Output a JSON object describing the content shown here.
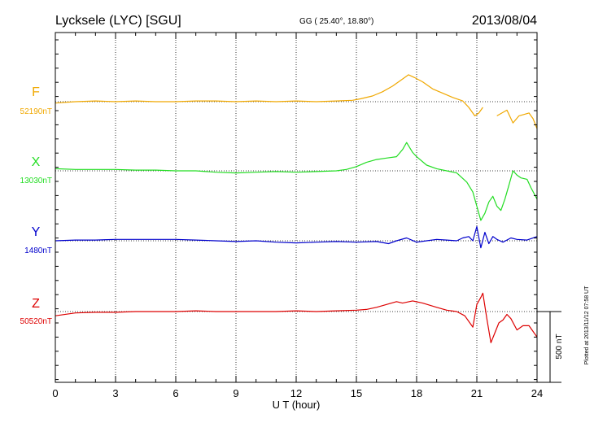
{
  "header": {
    "station": "Lycksele (LYC)  [SGU]",
    "coords": "GG ( 25.40°,  18.80°)",
    "date": "2013/08/04"
  },
  "footer": {
    "plotted": "Plotted at 2013/11/12 07:58 UT",
    "scale": "500 nT"
  },
  "chart_data": {
    "type": "line",
    "xlabel": "U T (hour)",
    "ylabel": "",
    "xlim": [
      0,
      24
    ],
    "xticks": [
      0,
      3,
      6,
      9,
      12,
      15,
      18,
      21,
      24
    ],
    "scale_bar_nT": 500,
    "grid": true,
    "series": [
      {
        "name": "F",
        "baseline_label": "52190nT",
        "baseline_nT": 52190,
        "color": "#f0a800",
        "points": [
          [
            0,
            -10
          ],
          [
            1,
            0
          ],
          [
            2,
            5
          ],
          [
            3,
            0
          ],
          [
            4,
            5
          ],
          [
            5,
            0
          ],
          [
            6,
            0
          ],
          [
            7,
            5
          ],
          [
            8,
            5
          ],
          [
            9,
            0
          ],
          [
            10,
            5
          ],
          [
            11,
            0
          ],
          [
            12,
            5
          ],
          [
            13,
            0
          ],
          [
            14,
            5
          ],
          [
            14.8,
            10
          ],
          [
            15.2,
            20
          ],
          [
            15.8,
            40
          ],
          [
            16.3,
            70
          ],
          [
            16.8,
            110
          ],
          [
            17.2,
            150
          ],
          [
            17.6,
            190
          ],
          [
            17.9,
            170
          ],
          [
            18.3,
            140
          ],
          [
            18.8,
            90
          ],
          [
            19.3,
            60
          ],
          [
            19.8,
            30
          ],
          [
            20.3,
            5
          ],
          [
            20.6,
            -40
          ],
          [
            20.9,
            -100
          ],
          [
            21.1,
            -80
          ],
          [
            21.3,
            -40
          ],
          null,
          [
            22,
            -100
          ],
          [
            22.5,
            -60
          ],
          [
            22.8,
            -150
          ],
          [
            23.1,
            -100
          ],
          [
            23.6,
            -80
          ],
          [
            23.8,
            -120
          ],
          [
            24,
            -190
          ]
        ]
      },
      {
        "name": "X",
        "baseline_label": "13030nT",
        "baseline_nT": 13030,
        "color": "#22dd22",
        "points": [
          [
            0,
            15
          ],
          [
            1,
            10
          ],
          [
            2,
            10
          ],
          [
            3,
            10
          ],
          [
            4,
            5
          ],
          [
            5,
            5
          ],
          [
            6,
            0
          ],
          [
            7,
            0
          ],
          [
            8,
            -10
          ],
          [
            9,
            -15
          ],
          [
            10,
            -10
          ],
          [
            11,
            -5
          ],
          [
            12,
            -10
          ],
          [
            13,
            -5
          ],
          [
            14,
            0
          ],
          [
            14.5,
            10
          ],
          [
            15,
            30
          ],
          [
            15.5,
            60
          ],
          [
            16,
            80
          ],
          [
            16.5,
            90
          ],
          [
            17,
            100
          ],
          [
            17.3,
            150
          ],
          [
            17.5,
            200
          ],
          [
            17.8,
            130
          ],
          [
            18,
            100
          ],
          [
            18.5,
            40
          ],
          [
            19,
            15
          ],
          [
            19.5,
            0
          ],
          [
            20,
            -15
          ],
          [
            20.5,
            -80
          ],
          [
            20.8,
            -150
          ],
          [
            21,
            -250
          ],
          [
            21.2,
            -350
          ],
          [
            21.4,
            -300
          ],
          [
            21.6,
            -220
          ],
          [
            21.8,
            -180
          ],
          [
            22,
            -250
          ],
          [
            22.2,
            -280
          ],
          [
            22.4,
            -200
          ],
          [
            22.6,
            -100
          ],
          [
            22.8,
            0
          ],
          [
            23,
            -30
          ],
          [
            23.2,
            -50
          ],
          [
            23.5,
            -60
          ],
          [
            23.7,
            -120
          ],
          [
            24,
            -200
          ]
        ]
      },
      {
        "name": "Y",
        "baseline_label": "1480nT",
        "baseline_nT": 1480,
        "color": "#0000cc",
        "points": [
          [
            0,
            0
          ],
          [
            1,
            5
          ],
          [
            2,
            5
          ],
          [
            3,
            10
          ],
          [
            4,
            10
          ],
          [
            5,
            10
          ],
          [
            6,
            10
          ],
          [
            7,
            5
          ],
          [
            8,
            0
          ],
          [
            9,
            -5
          ],
          [
            10,
            0
          ],
          [
            11,
            -10
          ],
          [
            12,
            -15
          ],
          [
            13,
            -10
          ],
          [
            14,
            -5
          ],
          [
            15,
            -10
          ],
          [
            16,
            -5
          ],
          [
            16.6,
            -20
          ],
          [
            17,
            0
          ],
          [
            17.5,
            20
          ],
          [
            18,
            -10
          ],
          [
            18.5,
            0
          ],
          [
            19,
            10
          ],
          [
            19.5,
            5
          ],
          [
            20,
            0
          ],
          [
            20.3,
            20
          ],
          [
            20.6,
            30
          ],
          [
            20.8,
            0
          ],
          [
            21,
            100
          ],
          [
            21.2,
            -50
          ],
          [
            21.4,
            60
          ],
          [
            21.6,
            -20
          ],
          [
            21.8,
            30
          ],
          [
            22,
            10
          ],
          [
            22.3,
            -10
          ],
          [
            22.7,
            20
          ],
          [
            23,
            10
          ],
          [
            23.5,
            5
          ],
          [
            24,
            30
          ]
        ]
      },
      {
        "name": "Z",
        "baseline_label": "50520nT",
        "baseline_nT": 50520,
        "color": "#dd0000",
        "points": [
          [
            0,
            -30
          ],
          [
            1,
            -10
          ],
          [
            2,
            -5
          ],
          [
            3,
            -5
          ],
          [
            4,
            0
          ],
          [
            5,
            0
          ],
          [
            6,
            0
          ],
          [
            7,
            5
          ],
          [
            8,
            0
          ],
          [
            9,
            0
          ],
          [
            10,
            0
          ],
          [
            11,
            0
          ],
          [
            12,
            5
          ],
          [
            13,
            0
          ],
          [
            14,
            5
          ],
          [
            15,
            10
          ],
          [
            15.5,
            15
          ],
          [
            16,
            30
          ],
          [
            16.5,
            50
          ],
          [
            17,
            70
          ],
          [
            17.3,
            60
          ],
          [
            17.8,
            75
          ],
          [
            18.3,
            60
          ],
          [
            19,
            30
          ],
          [
            19.5,
            10
          ],
          [
            20,
            0
          ],
          [
            20.4,
            -30
          ],
          [
            20.8,
            -110
          ],
          [
            21,
            50
          ],
          [
            21.2,
            100
          ],
          [
            21.3,
            130
          ],
          [
            21.5,
            -50
          ],
          [
            21.7,
            -220
          ],
          [
            21.9,
            -150
          ],
          [
            22.1,
            -80
          ],
          [
            22.3,
            -60
          ],
          [
            22.5,
            -20
          ],
          [
            22.7,
            -50
          ],
          [
            23,
            -130
          ],
          [
            23.3,
            -100
          ],
          [
            23.6,
            -100
          ],
          [
            24,
            -180
          ]
        ]
      }
    ]
  }
}
